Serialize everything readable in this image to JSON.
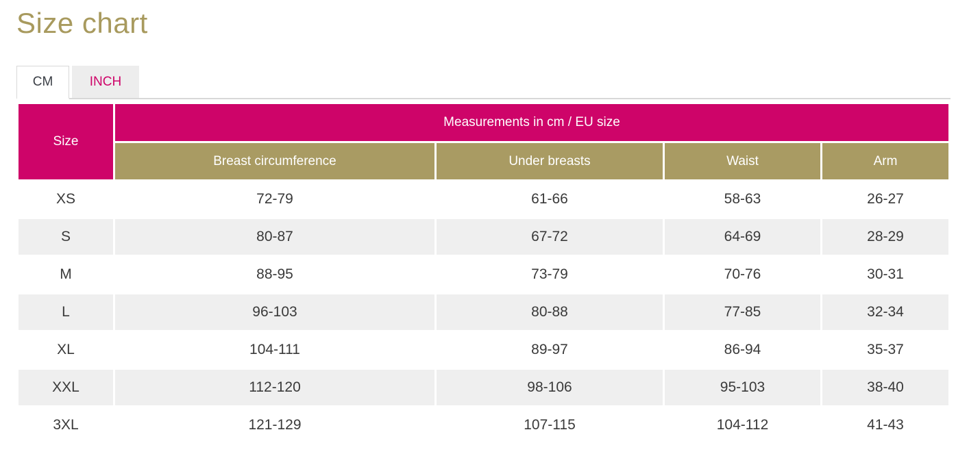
{
  "page": {
    "title": "Size chart"
  },
  "tabs": [
    {
      "label": "CM",
      "active": true
    },
    {
      "label": "INCH",
      "active": false
    }
  ],
  "table": {
    "size_header": "Size",
    "group_header": "Measurements in cm / EU size",
    "columns": [
      "Breast circumference",
      "Under breasts",
      "Waist",
      "Arm"
    ],
    "rows": [
      {
        "size": "XS",
        "values": [
          "72-79",
          "61-66",
          "58-63",
          "26-27"
        ]
      },
      {
        "size": "S",
        "values": [
          "80-87",
          "67-72",
          "64-69",
          "28-29"
        ]
      },
      {
        "size": "M",
        "values": [
          "88-95",
          "73-79",
          "70-76",
          "30-31"
        ]
      },
      {
        "size": "L",
        "values": [
          "96-103",
          "80-88",
          "77-85",
          "32-34"
        ]
      },
      {
        "size": "XL",
        "values": [
          "104-111",
          "89-97",
          "86-94",
          "35-37"
        ]
      },
      {
        "size": "XXL",
        "values": [
          "112-120",
          "98-106",
          "95-103",
          "38-40"
        ]
      },
      {
        "size": "3XL",
        "values": [
          "121-129",
          "107-115",
          "104-112",
          "41-43"
        ]
      }
    ]
  },
  "colors": {
    "pink": "#ce0469",
    "gold": "#a99b63",
    "title_gold": "#a89a5e",
    "row_alt": "#efefef",
    "tab_bg": "#ededed",
    "line": "#d8d8d8",
    "text": "#3b3f46"
  }
}
